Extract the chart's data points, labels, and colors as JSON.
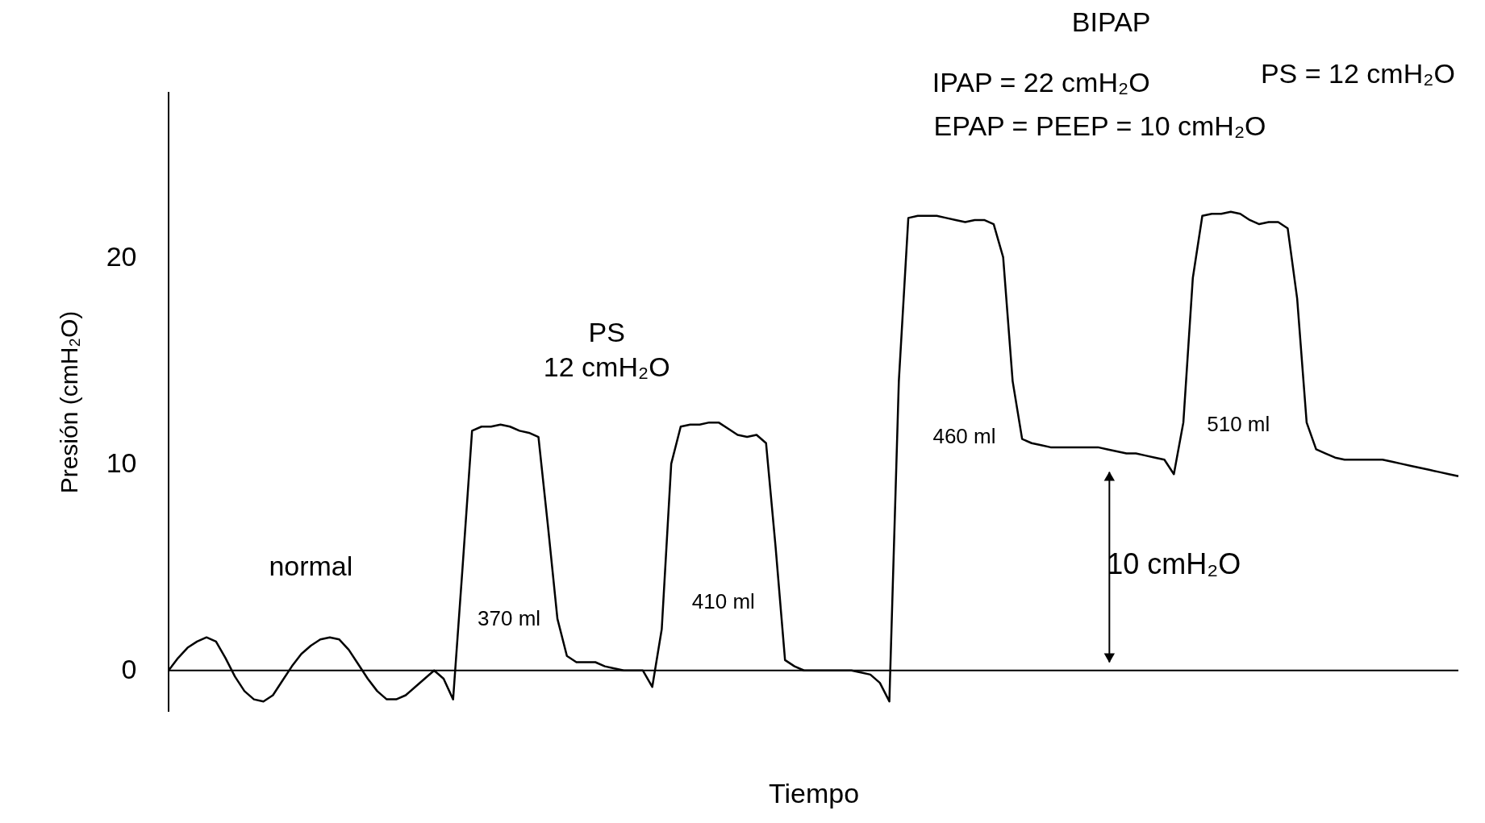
{
  "chart_data": {
    "type": "line",
    "xlabel": "Tiempo",
    "ylabel": "Presión (cmH₂O)",
    "categories": [
      null,
      null,
      null,
      null,
      null,
      null,
      null,
      null,
      null,
      null,
      null,
      null,
      null,
      null,
      null,
      null,
      null,
      null,
      null,
      null,
      null,
      null,
      null,
      null,
      null,
      null,
      null,
      null,
      null,
      null,
      null,
      null,
      null,
      null,
      null,
      null,
      null,
      null,
      null,
      null,
      null,
      null,
      null,
      null,
      null,
      null,
      null,
      null,
      null,
      null,
      null,
      null,
      null,
      null,
      null,
      null,
      null,
      null,
      null,
      null,
      null,
      null,
      null,
      null,
      null,
      null,
      null,
      null,
      null,
      null,
      null,
      null,
      null,
      null,
      null,
      null,
      null,
      null,
      null,
      null,
      null,
      null,
      null,
      null,
      null,
      null,
      null,
      null,
      null,
      null,
      null,
      null,
      null,
      null,
      null,
      null,
      null,
      null,
      null,
      null,
      null,
      null,
      null,
      null,
      null,
      null,
      null,
      null,
      null,
      null,
      null,
      null,
      null,
      null,
      null,
      null,
      null,
      null,
      null,
      null,
      null,
      null,
      null,
      null,
      null,
      null,
      null,
      null,
      null,
      null,
      null,
      null,
      null,
      null,
      null,
      null,
      null
    ],
    "series": [
      {
        "color": "#000000",
        "values": [
          0,
          0.6,
          1.1,
          1.4,
          1.6,
          1.4,
          0.6,
          -0.3,
          -1.0,
          -1.4,
          -1.5,
          -1.2,
          -0.5,
          0.2,
          0.8,
          1.2,
          1.5,
          1.6,
          1.5,
          1.0,
          0.3,
          -0.4,
          -1.0,
          -1.4,
          -1.4,
          -1.2,
          -0.8,
          -0.4,
          0,
          -0.4,
          -1.4,
          5,
          11.6,
          11.8,
          11.8,
          11.9,
          11.8,
          11.6,
          11.5,
          11.3,
          7,
          2.5,
          0.7,
          0.4,
          0.4,
          0.4,
          0.2,
          0.1,
          0,
          0,
          0,
          -0.8,
          2,
          10,
          11.8,
          11.9,
          11.9,
          12,
          12,
          11.7,
          11.4,
          11.3,
          11.4,
          11,
          6,
          0.5,
          0.2,
          0,
          0,
          0,
          0,
          0,
          0,
          -0.1,
          -0.2,
          -0.6,
          -1.5,
          14,
          21.9,
          22,
          22,
          22,
          21.9,
          21.8,
          21.7,
          21.8,
          21.8,
          21.6,
          20,
          14,
          11.2,
          11.0,
          10.9,
          10.8,
          10.8,
          10.8,
          10.8,
          10.8,
          10.8,
          10.7,
          10.6,
          10.5,
          10.5,
          10.4,
          10.3,
          10.2,
          9.5,
          12,
          19,
          22,
          22.1,
          22.1,
          22.2,
          22.1,
          21.8,
          21.6,
          21.7,
          21.7,
          21.4,
          18,
          12,
          10.7,
          10.5,
          10.3,
          10.2,
          10.2,
          10.2,
          10.2,
          10.2,
          10.1,
          10,
          9.9,
          9.8,
          9.7,
          9.6,
          9.5,
          9.4
        ]
      }
    ],
    "ylim": [
      -2,
      28
    ],
    "yticks": [
      0,
      10,
      20
    ],
    "ref_lines": [
      {
        "axis": "y",
        "value": 0,
        "color": "#000000",
        "line_style": "solid"
      }
    ],
    "grid": false,
    "marker": "none",
    "line_style": "solid",
    "annotations": [
      "normal",
      "PS",
      "12 cmH₂O",
      "370 ml",
      "410 ml",
      "460 ml",
      "510 ml",
      "10 cmH₂O",
      "BIPAP",
      "IPAP = 22 cmH₂O",
      "EPAP = PEEP = 10 cmH₂O",
      "PS = 12 cmH₂O"
    ]
  }
}
